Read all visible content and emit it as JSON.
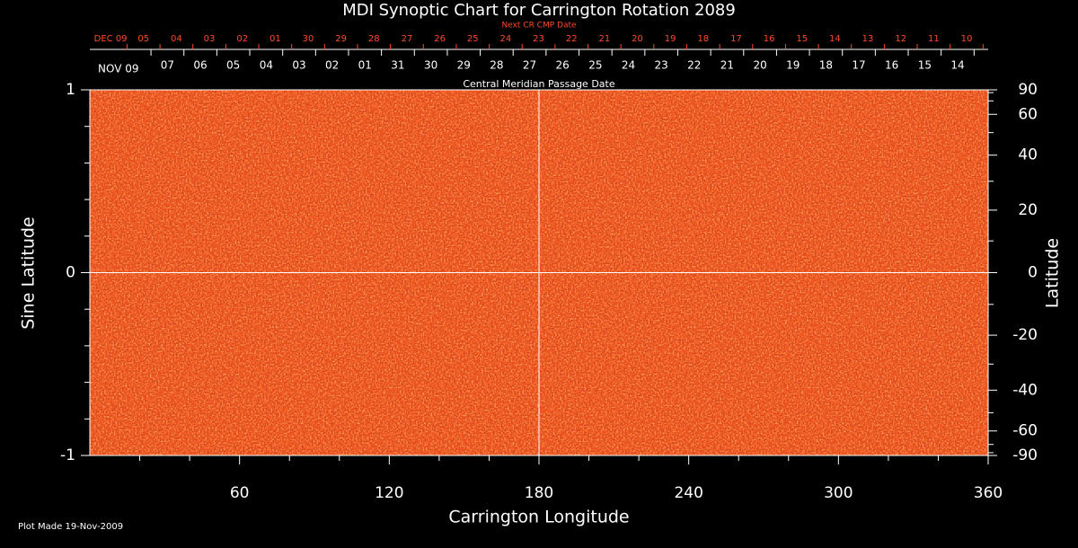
{
  "chart_data": {
    "type": "synoptic-map",
    "title": "MDI Synoptic Chart for Carrington Rotation 2089",
    "xlabel": "Carrington Longitude",
    "ylabel": "Sine Latitude",
    "y2label": "Latitude",
    "top_label": "Next CR CMP Date",
    "top_categories": [
      "DEC 09",
      "05",
      "04",
      "03",
      "02",
      "01",
      "30",
      "29",
      "28",
      "27",
      "26",
      "25",
      "24",
      "23",
      "22",
      "21",
      "20",
      "19",
      "18",
      "17",
      "16",
      "15",
      "14",
      "13",
      "12",
      "11",
      "10"
    ],
    "top_color": "#ff4a2a",
    "cmp_label": "Central Meridian Passage Date",
    "categories": [
      "NOV 09",
      "07",
      "06",
      "05",
      "04",
      "03",
      "02",
      "01",
      "31",
      "30",
      "29",
      "28",
      "27",
      "26",
      "25",
      "24",
      "23",
      "22",
      "21",
      "20",
      "19",
      "18",
      "17",
      "16",
      "15",
      "14"
    ],
    "xlim": [
      0,
      360
    ],
    "xticks": [
      60,
      120,
      180,
      240,
      300,
      360
    ],
    "xminorticks": [
      20,
      40,
      80,
      100,
      140,
      160,
      200,
      220,
      260,
      280,
      320,
      340
    ],
    "ylim": [
      -1,
      1
    ],
    "yticks": [
      -1,
      0,
      1
    ],
    "yminorticks": [
      -0.8,
      -0.6,
      -0.4,
      -0.2,
      0.2,
      0.4,
      0.6,
      0.8
    ],
    "y2lim": [
      -90,
      90
    ],
    "y2scale": "sine",
    "y2ticks": [
      90,
      60,
      40,
      20,
      0,
      -20,
      -40,
      -60,
      -90
    ],
    "y2minorticks": [
      80,
      70,
      50,
      30,
      10,
      -10,
      -30,
      -50,
      -70,
      -80
    ],
    "map_color": "#f0501a",
    "footer": "Plot Made 19-Nov-2009"
  }
}
